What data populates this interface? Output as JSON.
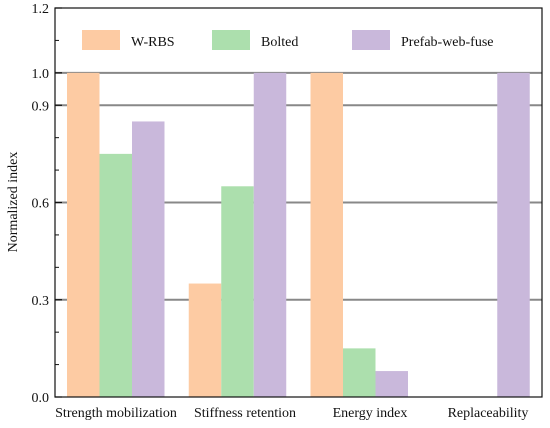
{
  "chart_data": {
    "type": "bar",
    "title": "",
    "xlabel": "",
    "ylabel": "Normalized index",
    "ylim": [
      0.0,
      1.2
    ],
    "y_ticks": [
      0.0,
      0.3,
      0.6,
      0.9,
      1.0,
      1.2
    ],
    "y_tick_labels": [
      "0.0",
      "0.3",
      "0.6",
      "0.9",
      "1.0",
      "1.2"
    ],
    "gridlines_at": [
      0.3,
      0.6,
      0.9,
      1.0
    ],
    "grid": true,
    "legend_position": "top",
    "categories": [
      "Strength mobilization",
      "Stiffness retention",
      "Energy index",
      "Replaceability"
    ],
    "series": [
      {
        "name": "W-RBS",
        "color": "#fdcba3",
        "values": [
          1.0,
          0.35,
          1.0,
          0.0
        ]
      },
      {
        "name": "Bolted",
        "color": "#acdfad",
        "values": [
          0.75,
          0.65,
          0.15,
          0.0
        ]
      },
      {
        "name": "Prefab-web-fuse",
        "color": "#c9b8db",
        "values": [
          0.85,
          1.0,
          0.08,
          1.0
        ]
      }
    ]
  }
}
